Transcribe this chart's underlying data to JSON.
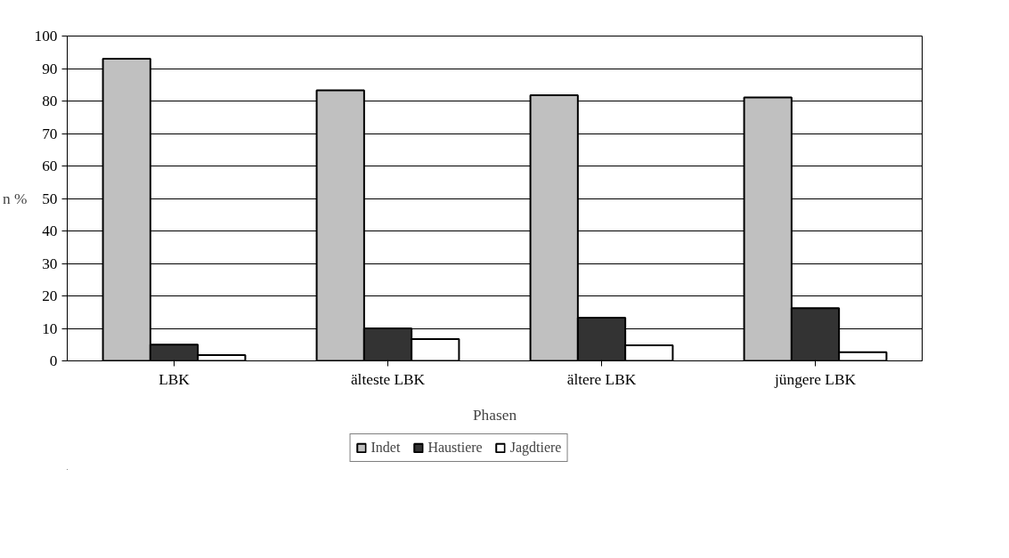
{
  "chart_data": {
    "type": "bar",
    "xlabel": "Phasen",
    "ylabel": "n %",
    "categories": [
      "LBK",
      "älteste LBK",
      "ältere LBK",
      "jüngere LBK"
    ],
    "series": [
      {
        "name": "Indet",
        "color": "#c0c0c0",
        "values": [
          93,
          83.3,
          81.8,
          81.1
        ]
      },
      {
        "name": "Haustiere",
        "color": "#333333",
        "values": [
          5,
          10,
          13.3,
          16.2
        ]
      },
      {
        "name": "Jagdtiere",
        "color": "#ffffff",
        "values": [
          1.8,
          6.7,
          4.8,
          2.7
        ]
      }
    ],
    "ylim": [
      0,
      100
    ],
    "yticks": [
      0,
      10,
      20,
      30,
      40,
      50,
      60,
      70,
      80,
      90,
      100
    ],
    "grid": "y",
    "legend": "bottom"
  }
}
